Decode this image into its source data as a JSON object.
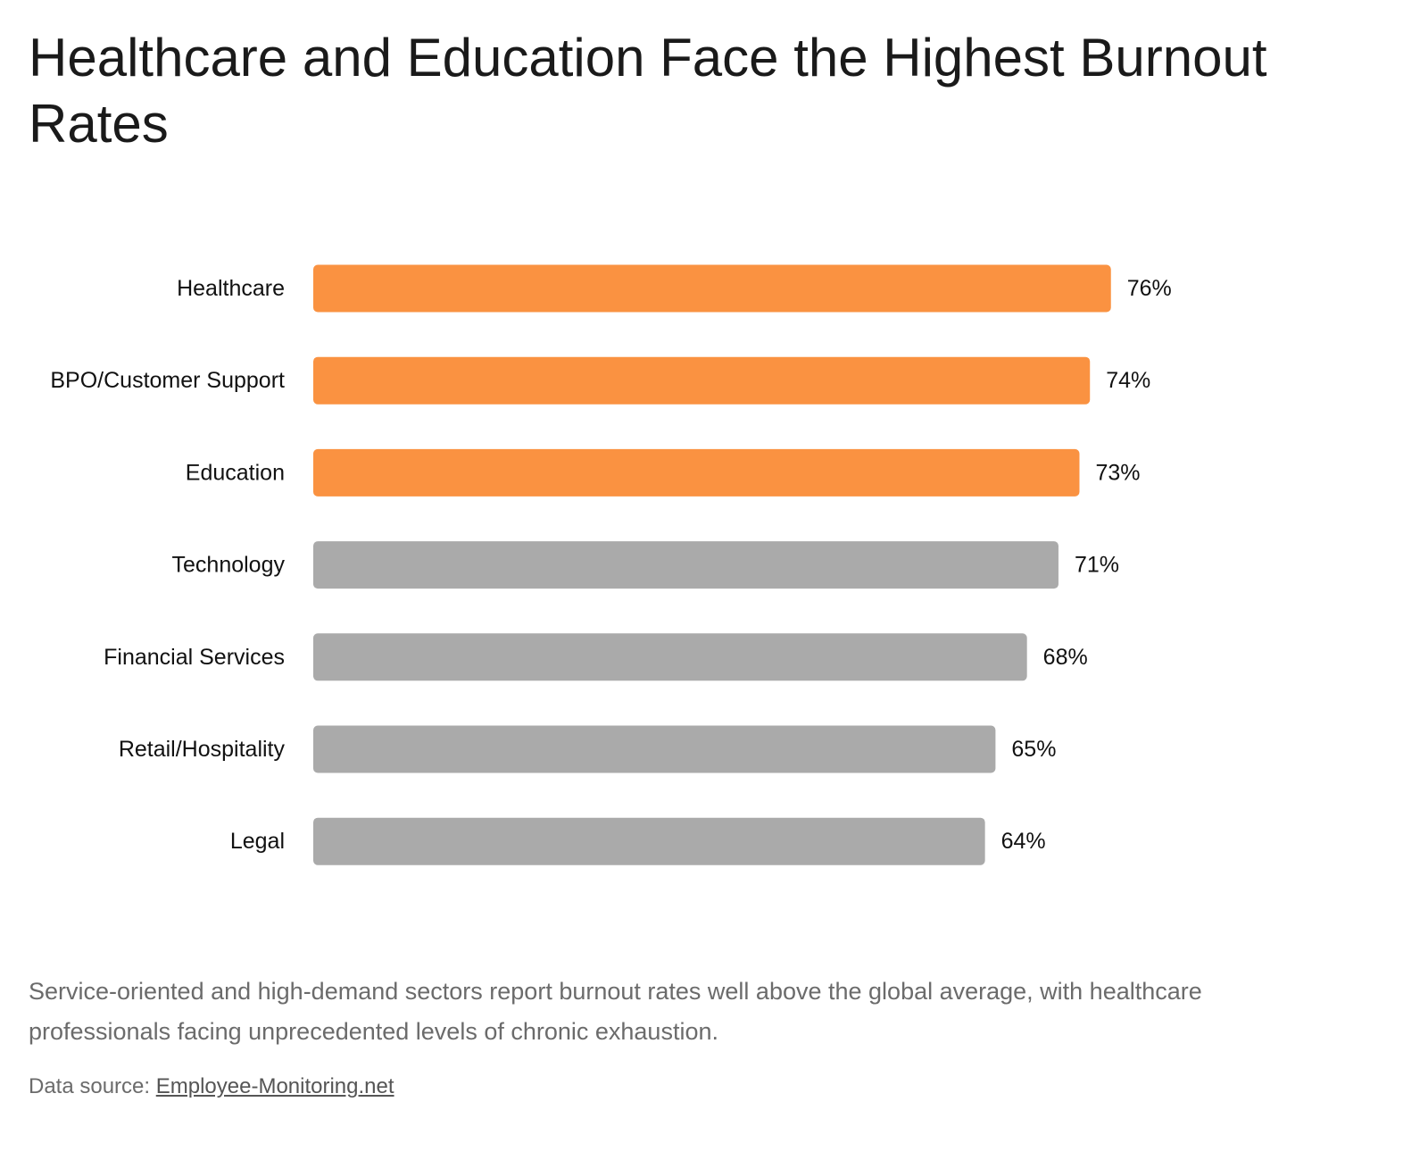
{
  "chart_data": {
    "type": "bar",
    "orientation": "horizontal",
    "title": "Healthcare and Education Face the Highest Burnout Rates",
    "categories": [
      "Healthcare",
      "BPO/Customer Support",
      "Education",
      "Technology",
      "Financial Services",
      "Retail/Hospitality",
      "Legal"
    ],
    "values": [
      76,
      74,
      73,
      71,
      68,
      65,
      64
    ],
    "value_labels": [
      "76%",
      "74%",
      "73%",
      "71%",
      "68%",
      "65%",
      "64%"
    ],
    "highlighted": [
      true,
      true,
      true,
      false,
      false,
      false,
      false
    ],
    "colors": {
      "highlight": "#FA9241",
      "default": "#AAAAAA"
    },
    "xlim": [
      0,
      100
    ],
    "grid": false,
    "legend": "none"
  },
  "caption": "Service-oriented and high-demand sectors report burnout rates well above the global average, with healthcare professionals facing unprecedented levels of chronic exhaustion.",
  "source": {
    "prefix": "Data source: ",
    "link_text": "Employee-Monitoring.net"
  }
}
